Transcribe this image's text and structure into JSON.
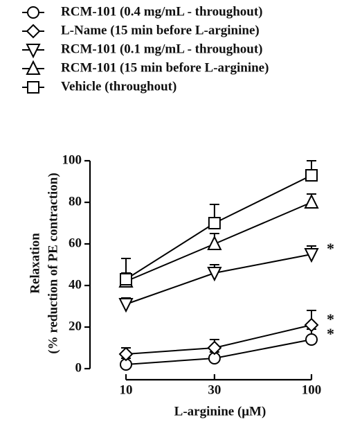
{
  "chart_data": {
    "type": "line",
    "xlabel": "L-arginine (μM)",
    "ylabel": [
      "Relaxation",
      "(% reduction of PE contraction)"
    ],
    "x": [
      10,
      30,
      100
    ],
    "xscale": "log",
    "xlim": [
      10,
      100
    ],
    "xticks": [
      10,
      30,
      100
    ],
    "ylim": [
      0,
      100
    ],
    "yticks": [
      0,
      20,
      40,
      60,
      80,
      100
    ],
    "series": [
      {
        "name": "RCM-101 (0.4 mg/mL - throughout)",
        "marker": "circle",
        "color": "#000000",
        "values": [
          2,
          5,
          14
        ],
        "errors": [
          3,
          3,
          5
        ],
        "annotation": "*"
      },
      {
        "name": "L-Name (15 min before L-arginine)",
        "marker": "diamond",
        "color": "#000000",
        "values": [
          7,
          10,
          21
        ],
        "errors": [
          3,
          4,
          7
        ],
        "annotation": "*"
      },
      {
        "name": "RCM-101 (0.1 mg/mL - throughout)",
        "marker": "triangle-down",
        "color": "#000000",
        "values": [
          31,
          46,
          55
        ],
        "errors": [
          3,
          4,
          4
        ],
        "annotation": "*"
      },
      {
        "name": "RCM-101 (15 min before L-arginine)",
        "marker": "triangle-up",
        "color": "#000000",
        "values": [
          42,
          60,
          80
        ],
        "errors": [
          4,
          5,
          4
        ]
      },
      {
        "name": "Vehicle (throughout)",
        "marker": "square",
        "color": "#000000",
        "values": [
          43,
          70,
          93
        ],
        "errors": [
          10,
          9,
          7
        ]
      }
    ]
  }
}
